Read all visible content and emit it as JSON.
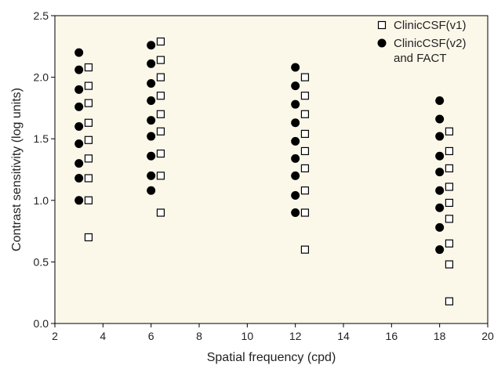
{
  "chart_data": {
    "type": "scatter",
    "xlabel": "Spatial frequency (cpd)",
    "ylabel": "Contrast sensitivity (log units)",
    "xlim": [
      2,
      20
    ],
    "ylim": [
      0.0,
      2.5
    ],
    "x_ticks": [
      2,
      4,
      6,
      8,
      10,
      12,
      14,
      16,
      18,
      20
    ],
    "y_ticks": [
      0.0,
      0.5,
      1.0,
      1.5,
      2.0,
      2.5
    ],
    "y_tick_labels": [
      "0.0",
      "0.5",
      "1.0",
      "1.5",
      "2.0",
      "2.5"
    ],
    "grid": false,
    "background_color": "#fbf8ea",
    "legend_position": "top-right",
    "legend_lines": [
      [
        "ClinicCSF(v1)"
      ],
      [
        "ClinicCSF(v2)",
        "and FACT"
      ]
    ],
    "series": [
      {
        "name": "ClinicCSF(v1)",
        "marker": "open-square",
        "color": "#000000",
        "points": [
          [
            3.4,
            2.08
          ],
          [
            3.4,
            1.93
          ],
          [
            3.4,
            1.79
          ],
          [
            3.4,
            1.63
          ],
          [
            3.4,
            1.49
          ],
          [
            3.4,
            1.34
          ],
          [
            3.4,
            1.18
          ],
          [
            3.4,
            1.0
          ],
          [
            3.4,
            0.7
          ],
          [
            6.4,
            2.29
          ],
          [
            6.4,
            2.14
          ],
          [
            6.4,
            2.0
          ],
          [
            6.4,
            1.85
          ],
          [
            6.4,
            1.7
          ],
          [
            6.4,
            1.56
          ],
          [
            6.4,
            1.38
          ],
          [
            6.4,
            1.2
          ],
          [
            6.4,
            0.9
          ],
          [
            12.4,
            2.0
          ],
          [
            12.4,
            1.85
          ],
          [
            12.4,
            1.7
          ],
          [
            12.4,
            1.54
          ],
          [
            12.4,
            1.4
          ],
          [
            12.4,
            1.26
          ],
          [
            12.4,
            1.08
          ],
          [
            12.4,
            0.9
          ],
          [
            12.4,
            0.6
          ],
          [
            18.4,
            1.56
          ],
          [
            18.4,
            1.4
          ],
          [
            18.4,
            1.26
          ],
          [
            18.4,
            1.11
          ],
          [
            18.4,
            0.98
          ],
          [
            18.4,
            0.85
          ],
          [
            18.4,
            0.65
          ],
          [
            18.4,
            0.48
          ],
          [
            18.4,
            0.18
          ]
        ]
      },
      {
        "name": "ClinicCSF(v2) and FACT",
        "marker": "filled-circle",
        "color": "#000000",
        "points": [
          [
            3.0,
            2.2
          ],
          [
            3.0,
            2.06
          ],
          [
            3.0,
            1.9
          ],
          [
            3.0,
            1.76
          ],
          [
            3.0,
            1.6
          ],
          [
            3.0,
            1.46
          ],
          [
            3.0,
            1.3
          ],
          [
            3.0,
            1.18
          ],
          [
            3.0,
            1.0
          ],
          [
            6.0,
            2.26
          ],
          [
            6.0,
            2.11
          ],
          [
            6.0,
            1.95
          ],
          [
            6.0,
            1.81
          ],
          [
            6.0,
            1.65
          ],
          [
            6.0,
            1.52
          ],
          [
            6.0,
            1.36
          ],
          [
            6.0,
            1.2
          ],
          [
            6.0,
            1.08
          ],
          [
            12.0,
            2.08
          ],
          [
            12.0,
            1.93
          ],
          [
            12.0,
            1.78
          ],
          [
            12.0,
            1.63
          ],
          [
            12.0,
            1.48
          ],
          [
            12.0,
            1.34
          ],
          [
            12.0,
            1.2
          ],
          [
            12.0,
            1.04
          ],
          [
            12.0,
            0.9
          ],
          [
            18.0,
            1.81
          ],
          [
            18.0,
            1.66
          ],
          [
            18.0,
            1.52
          ],
          [
            18.0,
            1.36
          ],
          [
            18.0,
            1.23
          ],
          [
            18.0,
            1.08
          ],
          [
            18.0,
            0.94
          ],
          [
            18.0,
            0.78
          ],
          [
            18.0,
            0.6
          ]
        ]
      }
    ]
  }
}
